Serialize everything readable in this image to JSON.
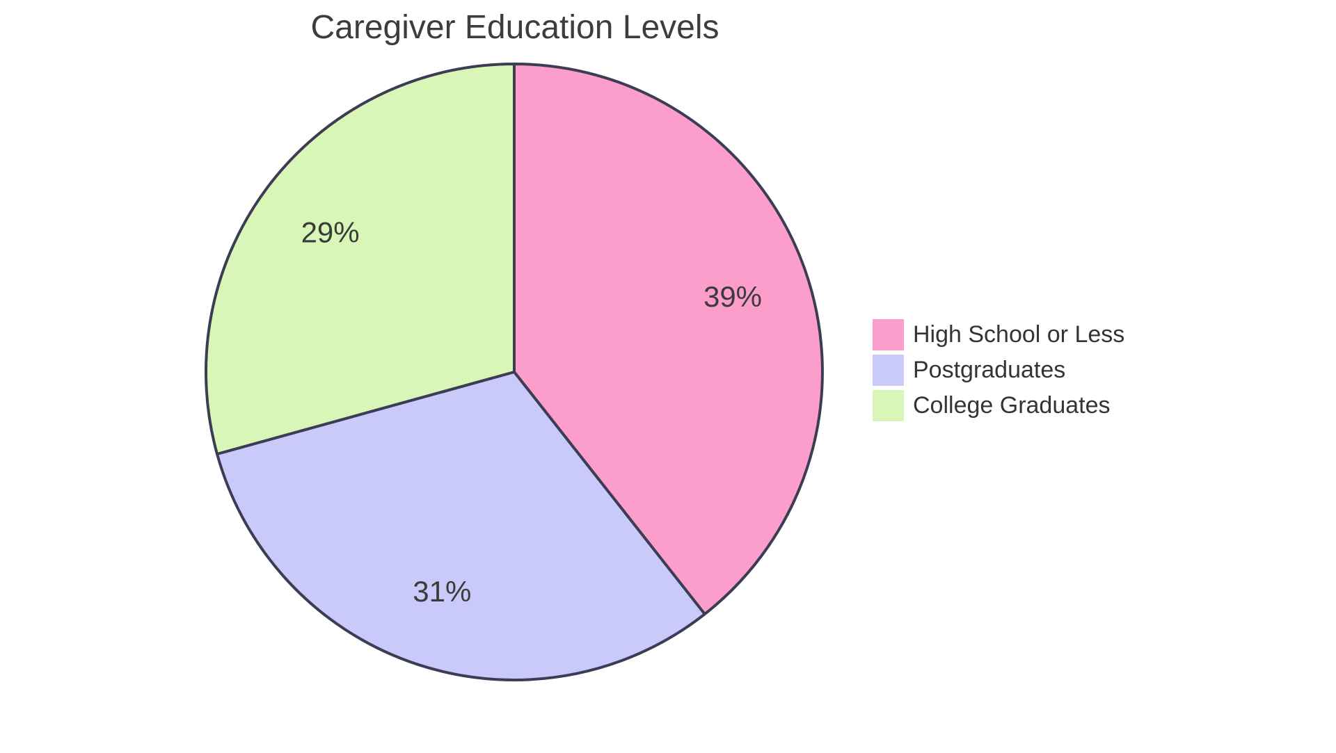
{
  "title": "Caregiver Education Levels",
  "chart_data": {
    "type": "pie",
    "title": "Caregiver Education Levels",
    "labels": [
      "High School or Less",
      "Postgraduates",
      "College Graduates"
    ],
    "values": [
      39,
      31,
      29
    ],
    "value_labels": [
      "39%",
      "31%",
      "29%"
    ],
    "colors": [
      "#FC9ECB",
      "#C9C9FA",
      "#D8F6B8"
    ],
    "border_color": "#3C3C54",
    "border_width": 4,
    "start_angle_deg": 0,
    "direction": "clockwise",
    "label_radius_ratio": 0.75,
    "label_color": "#3B3B3B",
    "legend_position": "right",
    "background": "#FFFFFF"
  }
}
